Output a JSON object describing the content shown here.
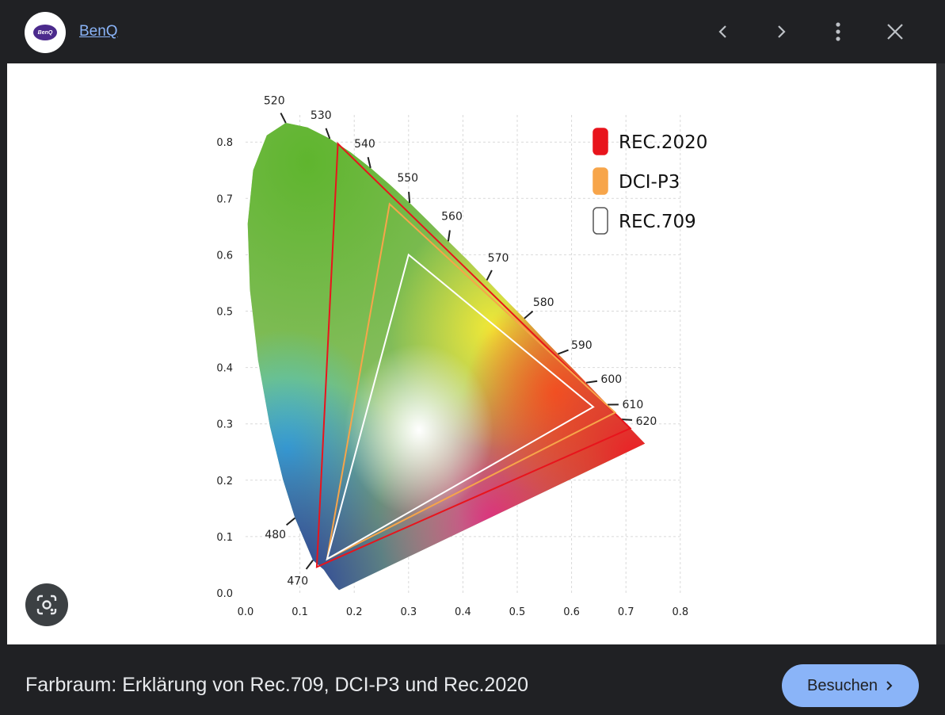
{
  "header": {
    "source_name": "BenQ",
    "logo_text": "BenQ",
    "icons": [
      "chevron-left-icon",
      "chevron-right-icon",
      "more-vert-icon",
      "close-icon"
    ]
  },
  "caption": {
    "title": "Farbraum: Erklärung von Rec.709, DCI-P3 und Rec.2020"
  },
  "visit_button": {
    "label": "Besuchen"
  },
  "chart_data": {
    "type": "scatter",
    "title": "",
    "xlabel": "",
    "ylabel": "",
    "xlim": [
      0,
      0.8
    ],
    "ylim": [
      0,
      0.8
    ],
    "x_ticks": [
      "0.0",
      "0.1",
      "0.2",
      "0.3",
      "0.4",
      "0.5",
      "0.6",
      "0.7",
      "0.8"
    ],
    "y_ticks": [
      "0.0",
      "0.1",
      "0.2",
      "0.3",
      "0.4",
      "0.5",
      "0.6",
      "0.7",
      "0.8"
    ],
    "grid": true,
    "legend_position": "top-right",
    "series": [
      {
        "name": "REC.2020",
        "color": "#e8141c",
        "x": [
          0.708,
          0.17,
          0.131
        ],
        "y": [
          0.292,
          0.797,
          0.046
        ]
      },
      {
        "name": "DCI-P3",
        "color": "#f7a54a",
        "x": [
          0.68,
          0.265,
          0.15
        ],
        "y": [
          0.32,
          0.69,
          0.06
        ]
      },
      {
        "name": "REC.709",
        "color": "#ffffff",
        "x": [
          0.64,
          0.3,
          0.15
        ],
        "y": [
          0.33,
          0.6,
          0.06
        ]
      }
    ],
    "wavelength_labels": [
      {
        "label": "470",
        "x": 0.124,
        "y": 0.058
      },
      {
        "label": "480",
        "x": 0.091,
        "y": 0.133
      },
      {
        "label": "520",
        "x": 0.074,
        "y": 0.834
      },
      {
        "label": "530",
        "x": 0.155,
        "y": 0.806
      },
      {
        "label": "540",
        "x": 0.23,
        "y": 0.754
      },
      {
        "label": "550",
        "x": 0.302,
        "y": 0.692
      },
      {
        "label": "560",
        "x": 0.373,
        "y": 0.624
      },
      {
        "label": "570",
        "x": 0.444,
        "y": 0.555
      },
      {
        "label": "580",
        "x": 0.513,
        "y": 0.487
      },
      {
        "label": "590",
        "x": 0.575,
        "y": 0.424
      },
      {
        "label": "600",
        "x": 0.627,
        "y": 0.373
      },
      {
        "label": "610",
        "x": 0.666,
        "y": 0.334
      },
      {
        "label": "620",
        "x": 0.691,
        "y": 0.308
      }
    ]
  }
}
